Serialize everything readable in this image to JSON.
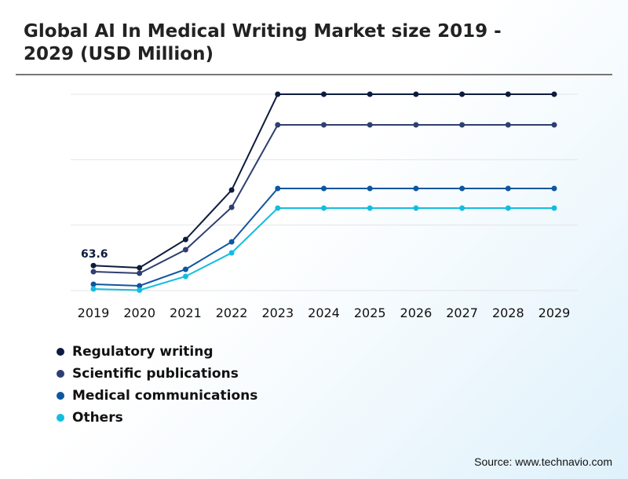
{
  "chart_data": {
    "type": "line",
    "title": "Global AI In Medical Writing Market size 2019 - 2029 (USD Million)",
    "categories": [
      "2019",
      "2020",
      "2021",
      "2022",
      "2023",
      "2024",
      "2025",
      "2026",
      "2027",
      "2028",
      "2029"
    ],
    "series": [
      {
        "name": "Regulatory writing",
        "color": "#0d1b3e",
        "values": [
          63.6,
          58,
          130,
          256,
          500,
          500,
          500,
          500,
          500,
          500,
          500
        ]
      },
      {
        "name": "Scientific publications",
        "color": "#2e3f70",
        "values": [
          48,
          44,
          104,
          212,
          422,
          422,
          422,
          422,
          422,
          422,
          422
        ]
      },
      {
        "name": "Medical communications",
        "color": "#0e56a0",
        "values": [
          16,
          12,
          54,
          124,
          260,
          260,
          260,
          260,
          260,
          260,
          260
        ]
      },
      {
        "name": "Others",
        "color": "#13bde0",
        "values": [
          4,
          1,
          36,
          96,
          210,
          210,
          210,
          210,
          210,
          210,
          210
        ]
      }
    ],
    "data_labels": [
      {
        "series": 0,
        "index": 0,
        "text": "63.6"
      }
    ],
    "ylim": [
      0,
      500
    ],
    "grid": true,
    "legend": "bottom-left"
  },
  "source": "Source: www.technavio.com"
}
